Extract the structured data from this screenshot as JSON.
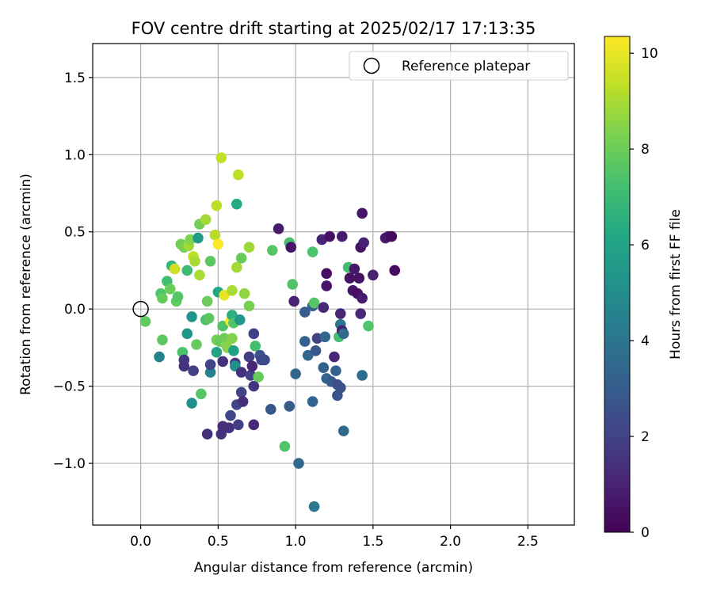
{
  "chart_data": {
    "type": "scatter",
    "title": "FOV centre drift starting at 2025/02/17 17:13:35",
    "xlabel": "Angular distance from reference (arcmin)",
    "ylabel": "Rotation from reference (arcmin)",
    "xlim": [
      -0.31,
      2.8
    ],
    "ylim": [
      -1.4,
      1.72
    ],
    "xticks": [
      "0.0",
      "0.5",
      "1.0",
      "1.5",
      "2.0",
      "2.5"
    ],
    "yticks": [
      "−1.0",
      "−0.5",
      "0.0",
      "0.5",
      "1.0",
      "1.5"
    ],
    "grid": true,
    "legend": {
      "position": "top-right",
      "entries": [
        "Reference platepar"
      ]
    },
    "reference_point": {
      "x": 0.0,
      "y": 0.0
    },
    "colorbar": {
      "label": "Hours from first FF file",
      "colormap": "viridis",
      "range": [
        0,
        10.35
      ],
      "ticks": [
        "0",
        "2",
        "4",
        "6",
        "8",
        "10"
      ]
    },
    "points": [
      {
        "x": 0.03,
        "y": -0.08,
        "h": 7.8
      },
      {
        "x": 0.12,
        "y": -0.31,
        "h": 4.6
      },
      {
        "x": 0.14,
        "y": -0.2,
        "h": 7.7
      },
      {
        "x": 0.13,
        "y": 0.1,
        "h": 7.5
      },
      {
        "x": 0.14,
        "y": 0.07,
        "h": 7.9
      },
      {
        "x": 0.17,
        "y": 0.18,
        "h": 7.2
      },
      {
        "x": 0.2,
        "y": 0.28,
        "h": 6.8
      },
      {
        "x": 0.19,
        "y": 0.13,
        "h": 8.0
      },
      {
        "x": 0.22,
        "y": 0.26,
        "h": 9.6
      },
      {
        "x": 0.23,
        "y": 0.05,
        "h": 7.8
      },
      {
        "x": 0.24,
        "y": 0.08,
        "h": 7.6
      },
      {
        "x": 0.27,
        "y": -0.28,
        "h": 7.4
      },
      {
        "x": 0.26,
        "y": 0.42,
        "h": 8.1
      },
      {
        "x": 0.28,
        "y": 0.4,
        "h": 8.2
      },
      {
        "x": 0.28,
        "y": -0.33,
        "h": 1.6
      },
      {
        "x": 0.28,
        "y": -0.37,
        "h": 1.5
      },
      {
        "x": 0.3,
        "y": 0.25,
        "h": 7.0
      },
      {
        "x": 0.3,
        "y": -0.16,
        "h": 5.4
      },
      {
        "x": 0.31,
        "y": 0.41,
        "h": 8.9
      },
      {
        "x": 0.32,
        "y": 0.45,
        "h": 8.4
      },
      {
        "x": 0.33,
        "y": -0.05,
        "h": 5.3
      },
      {
        "x": 0.33,
        "y": -0.61,
        "h": 5.1
      },
      {
        "x": 0.34,
        "y": -0.4,
        "h": 1.9
      },
      {
        "x": 0.34,
        "y": 0.34,
        "h": 9.3
      },
      {
        "x": 0.35,
        "y": 0.31,
        "h": 9.0
      },
      {
        "x": 0.36,
        "y": -0.23,
        "h": 7.9
      },
      {
        "x": 0.37,
        "y": 0.46,
        "h": 5.6
      },
      {
        "x": 0.38,
        "y": 0.55,
        "h": 8.1
      },
      {
        "x": 0.38,
        "y": 0.22,
        "h": 9.0
      },
      {
        "x": 0.39,
        "y": -0.55,
        "h": 7.6
      },
      {
        "x": 0.42,
        "y": 0.58,
        "h": 8.9
      },
      {
        "x": 0.42,
        "y": -0.07,
        "h": 7.4
      },
      {
        "x": 0.43,
        "y": 0.05,
        "h": 8.0
      },
      {
        "x": 0.44,
        "y": -0.06,
        "h": 7.7
      },
      {
        "x": 0.45,
        "y": -0.41,
        "h": 4.6
      },
      {
        "x": 0.45,
        "y": -0.36,
        "h": 2.1
      },
      {
        "x": 0.45,
        "y": 0.31,
        "h": 7.7
      },
      {
        "x": 0.43,
        "y": -0.81,
        "h": 1.4
      },
      {
        "x": 0.48,
        "y": 0.48,
        "h": 9.2
      },
      {
        "x": 0.49,
        "y": 0.67,
        "h": 9.3
      },
      {
        "x": 0.49,
        "y": -0.28,
        "h": 6.0
      },
      {
        "x": 0.49,
        "y": -0.2,
        "h": 8.2
      },
      {
        "x": 0.5,
        "y": 0.42,
        "h": 10.3
      },
      {
        "x": 0.5,
        "y": 0.11,
        "h": 6.2
      },
      {
        "x": 0.51,
        "y": -0.21,
        "h": 7.9
      },
      {
        "x": 0.52,
        "y": -0.81,
        "h": 1.5
      },
      {
        "x": 0.52,
        "y": 0.98,
        "h": 9.4
      },
      {
        "x": 0.53,
        "y": -0.76,
        "h": 1.3
      },
      {
        "x": 0.53,
        "y": -0.34,
        "h": 1.4
      },
      {
        "x": 0.53,
        "y": -0.11,
        "h": 7.4
      },
      {
        "x": 0.54,
        "y": 0.09,
        "h": 10.0
      },
      {
        "x": 0.54,
        "y": -0.19,
        "h": 8.0
      },
      {
        "x": 0.55,
        "y": -0.23,
        "h": 8.3
      },
      {
        "x": 0.56,
        "y": -0.25,
        "h": 8.5
      },
      {
        "x": 0.57,
        "y": -0.77,
        "h": 1.4
      },
      {
        "x": 0.58,
        "y": -0.69,
        "h": 2.2
      },
      {
        "x": 0.58,
        "y": -0.08,
        "h": 10.2
      },
      {
        "x": 0.59,
        "y": 0.12,
        "h": 9.0
      },
      {
        "x": 0.59,
        "y": -0.19,
        "h": 8.4
      },
      {
        "x": 0.59,
        "y": -0.04,
        "h": 6.5
      },
      {
        "x": 0.6,
        "y": -0.27,
        "h": 5.8
      },
      {
        "x": 0.6,
        "y": -0.09,
        "h": 7.5
      },
      {
        "x": 0.61,
        "y": -0.35,
        "h": 1.7
      },
      {
        "x": 0.61,
        "y": -0.37,
        "h": 5.1
      },
      {
        "x": 0.62,
        "y": 0.68,
        "h": 6.3
      },
      {
        "x": 0.62,
        "y": 0.27,
        "h": 8.9
      },
      {
        "x": 0.62,
        "y": -0.62,
        "h": 2.2
      },
      {
        "x": 0.63,
        "y": 0.87,
        "h": 9.3
      },
      {
        "x": 0.63,
        "y": -0.75,
        "h": 1.9
      },
      {
        "x": 0.64,
        "y": -0.07,
        "h": 5.4
      },
      {
        "x": 0.65,
        "y": 0.33,
        "h": 7.9
      },
      {
        "x": 0.65,
        "y": -0.54,
        "h": 2.1
      },
      {
        "x": 0.65,
        "y": -0.41,
        "h": 1.5
      },
      {
        "x": 0.66,
        "y": -0.6,
        "h": 1.4
      },
      {
        "x": 0.67,
        "y": 0.1,
        "h": 8.6
      },
      {
        "x": 0.7,
        "y": 0.4,
        "h": 8.8
      },
      {
        "x": 0.7,
        "y": -0.31,
        "h": 1.9
      },
      {
        "x": 0.7,
        "y": 0.02,
        "h": 8.2
      },
      {
        "x": 0.71,
        "y": -0.43,
        "h": 2.0
      },
      {
        "x": 0.72,
        "y": -0.37,
        "h": 1.2
      },
      {
        "x": 0.73,
        "y": -0.5,
        "h": 1.6
      },
      {
        "x": 0.73,
        "y": -0.16,
        "h": 1.9
      },
      {
        "x": 0.73,
        "y": -0.75,
        "h": 1.2
      },
      {
        "x": 0.74,
        "y": -0.24,
        "h": 7.2
      },
      {
        "x": 0.76,
        "y": -0.44,
        "h": 7.9
      },
      {
        "x": 0.77,
        "y": -0.3,
        "h": 2.6
      },
      {
        "x": 0.78,
        "y": -0.33,
        "h": 2.2
      },
      {
        "x": 0.8,
        "y": -0.33,
        "h": 2.3
      },
      {
        "x": 0.84,
        "y": -0.65,
        "h": 2.8
      },
      {
        "x": 0.85,
        "y": 0.38,
        "h": 7.6
      },
      {
        "x": 0.89,
        "y": 0.52,
        "h": 0.8
      },
      {
        "x": 0.93,
        "y": -0.89,
        "h": 7.5
      },
      {
        "x": 0.96,
        "y": -0.63,
        "h": 3.0
      },
      {
        "x": 0.96,
        "y": 0.43,
        "h": 7.3
      },
      {
        "x": 0.97,
        "y": 0.4,
        "h": 0.6
      },
      {
        "x": 0.98,
        "y": 0.16,
        "h": 7.5
      },
      {
        "x": 0.99,
        "y": 0.05,
        "h": 1.0
      },
      {
        "x": 1.0,
        "y": -0.42,
        "h": 3.4
      },
      {
        "x": 1.02,
        "y": -1.0,
        "h": 3.5
      },
      {
        "x": 1.06,
        "y": -0.02,
        "h": 3.0
      },
      {
        "x": 1.06,
        "y": -0.21,
        "h": 3.2
      },
      {
        "x": 1.08,
        "y": -0.3,
        "h": 3.4
      },
      {
        "x": 1.11,
        "y": 0.37,
        "h": 7.4
      },
      {
        "x": 1.11,
        "y": 0.02,
        "h": 3.2
      },
      {
        "x": 1.11,
        "y": -0.6,
        "h": 3.3
      },
      {
        "x": 1.12,
        "y": 0.04,
        "h": 7.6
      },
      {
        "x": 1.12,
        "y": -1.28,
        "h": 4.1
      },
      {
        "x": 1.13,
        "y": -0.27,
        "h": 2.8
      },
      {
        "x": 1.14,
        "y": -0.19,
        "h": 2.0
      },
      {
        "x": 1.17,
        "y": 0.45,
        "h": 1.0
      },
      {
        "x": 1.18,
        "y": 0.01,
        "h": 1.2
      },
      {
        "x": 1.18,
        "y": -0.38,
        "h": 3.2
      },
      {
        "x": 1.19,
        "y": -0.18,
        "h": 3.4
      },
      {
        "x": 1.2,
        "y": 0.23,
        "h": 0.4
      },
      {
        "x": 1.2,
        "y": 0.15,
        "h": 0.6
      },
      {
        "x": 1.2,
        "y": -0.45,
        "h": 3.3
      },
      {
        "x": 1.22,
        "y": 0.47,
        "h": 0.4
      },
      {
        "x": 1.23,
        "y": -0.47,
        "h": 3.0
      },
      {
        "x": 1.25,
        "y": -0.31,
        "h": 1.2
      },
      {
        "x": 1.26,
        "y": -0.4,
        "h": 3.2
      },
      {
        "x": 1.27,
        "y": -0.56,
        "h": 2.7
      },
      {
        "x": 1.27,
        "y": -0.49,
        "h": 2.4
      },
      {
        "x": 1.28,
        "y": -0.18,
        "h": 7.3
      },
      {
        "x": 1.29,
        "y": -0.03,
        "h": 1.1
      },
      {
        "x": 1.29,
        "y": -0.1,
        "h": 4.1
      },
      {
        "x": 1.29,
        "y": -0.51,
        "h": 2.5
      },
      {
        "x": 1.3,
        "y": 0.47,
        "h": 0.8
      },
      {
        "x": 1.3,
        "y": -0.14,
        "h": 0.9
      },
      {
        "x": 1.31,
        "y": -0.16,
        "h": 3.6
      },
      {
        "x": 1.31,
        "y": -0.79,
        "h": 3.5
      },
      {
        "x": 1.34,
        "y": 0.27,
        "h": 7.2
      },
      {
        "x": 1.35,
        "y": 0.2,
        "h": 0.5
      },
      {
        "x": 1.37,
        "y": 0.12,
        "h": 0.6
      },
      {
        "x": 1.38,
        "y": 0.26,
        "h": 0.7
      },
      {
        "x": 1.4,
        "y": 0.1,
        "h": 0.4
      },
      {
        "x": 1.41,
        "y": 0.2,
        "h": 0.5
      },
      {
        "x": 1.42,
        "y": 0.4,
        "h": 0.5
      },
      {
        "x": 1.42,
        "y": -0.03,
        "h": 1.2
      },
      {
        "x": 1.43,
        "y": 0.62,
        "h": 0.6
      },
      {
        "x": 1.43,
        "y": 0.07,
        "h": 0.8
      },
      {
        "x": 1.44,
        "y": 0.43,
        "h": 1.0
      },
      {
        "x": 1.43,
        "y": -0.43,
        "h": 3.7
      },
      {
        "x": 1.47,
        "y": -0.11,
        "h": 7.5
      },
      {
        "x": 1.5,
        "y": 0.22,
        "h": 1.0
      },
      {
        "x": 1.58,
        "y": 0.46,
        "h": 0.8
      },
      {
        "x": 1.6,
        "y": 0.47,
        "h": 0.6
      },
      {
        "x": 1.62,
        "y": 0.47,
        "h": 0.3
      },
      {
        "x": 1.64,
        "y": 0.25,
        "h": 0.3
      }
    ]
  }
}
